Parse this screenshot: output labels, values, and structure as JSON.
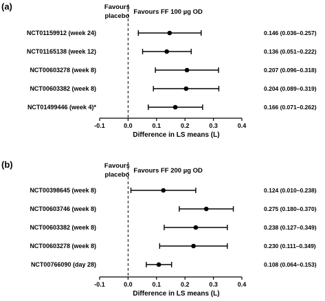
{
  "chart_data": [
    {
      "type": "forest",
      "panel_label": "(a)",
      "headers": {
        "left": [
          "Favours",
          "placebo"
        ],
        "right": "Favours FF 100 µg OD"
      },
      "xlabel": "Difference in LS means (L)",
      "xlim": [
        -0.1,
        0.4
      ],
      "xticks": [
        -0.1,
        0.0,
        0.1,
        0.2,
        0.3,
        0.4
      ],
      "xtick_labels": [
        "-0.1",
        "0.0",
        "0.1",
        "0.2",
        "0.3",
        "0.4"
      ],
      "reference_line": 0.0,
      "rows": [
        {
          "study": "NCT01159912 (week 24)",
          "estimate": 0.146,
          "lower": 0.036,
          "upper": 0.257,
          "label": "0.146 (0.036–0.257)"
        },
        {
          "study": "NCT01165138 (week 12)",
          "estimate": 0.136,
          "lower": 0.051,
          "upper": 0.222,
          "label": "0.136 (0.051–0.222)"
        },
        {
          "study": "NCT00603278 (week 8)",
          "estimate": 0.207,
          "lower": 0.096,
          "upper": 0.318,
          "label": "0.207 (0.096–0.318)"
        },
        {
          "study": "NCT00603382 (week 8)",
          "estimate": 0.204,
          "lower": 0.089,
          "upper": 0.319,
          "label": "0.204 (0.089–0.319)"
        },
        {
          "study": "NCT01499446 (week 4)*",
          "estimate": 0.166,
          "lower": 0.071,
          "upper": 0.262,
          "label": "0.166 (0.071–0.262)"
        }
      ]
    },
    {
      "type": "forest",
      "panel_label": "(b)",
      "headers": {
        "left": [
          "Favours",
          "placebo"
        ],
        "right": "Favours FF 200 µg OD"
      },
      "xlabel": "Difference in LS means (L)",
      "xlim": [
        -0.1,
        0.4
      ],
      "xticks": [
        -0.1,
        0.0,
        0.1,
        0.2,
        0.3,
        0.4
      ],
      "xtick_labels": [
        "-0.1",
        "0.0",
        "0.1",
        "0.2",
        "0.3",
        "0.4"
      ],
      "reference_line": 0.0,
      "rows": [
        {
          "study": "NCT00398645 (week 8)",
          "estimate": 0.124,
          "lower": 0.01,
          "upper": 0.238,
          "label": "0.124 (0.010–0.238)"
        },
        {
          "study": "NCT00603746 (week 8)",
          "estimate": 0.275,
          "lower": 0.18,
          "upper": 0.37,
          "label": "0.275 (0.180–0.370)"
        },
        {
          "study": "NCT00603382 (week 8)",
          "estimate": 0.238,
          "lower": 0.127,
          "upper": 0.349,
          "label": "0.238 (0.127–0.349)"
        },
        {
          "study": "NCT00603278 (week 8)",
          "estimate": 0.23,
          "lower": 0.111,
          "upper": 0.349,
          "label": "0.230 (0.111–0.349)"
        },
        {
          "study": "NCT00766090 (day 28)",
          "estimate": 0.108,
          "lower": 0.064,
          "upper": 0.153,
          "label": "0.108 (0.064–0.153)"
        }
      ]
    }
  ],
  "colors": {
    "ink": "#000000",
    "background": "#ffffff"
  }
}
